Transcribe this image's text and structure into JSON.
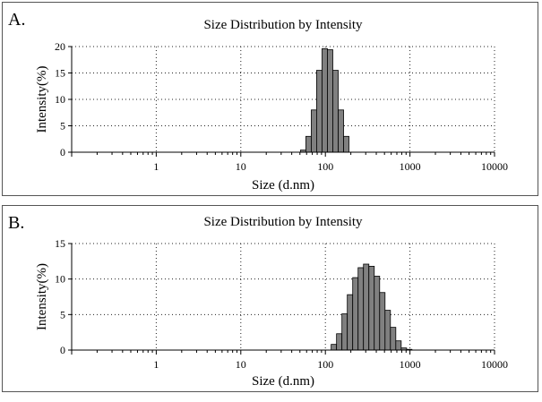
{
  "chart_data": [
    {
      "type": "bar",
      "panel_label": "A.",
      "title": "Size Distribution by Intensity",
      "xlabel": "Size (d.nm)",
      "ylabel": "Intensity(%)",
      "x_scale": "log",
      "xlim": [
        0.1,
        10000
      ],
      "ylim": [
        0,
        20
      ],
      "y_ticks": [
        0,
        5,
        10,
        15,
        20
      ],
      "x_tick_labels": [
        "1",
        "10",
        "100",
        "1000",
        "10000"
      ],
      "grid": true,
      "bin_edges": [
        50.7,
        58.8,
        68.1,
        78.8,
        91.3,
        105.7,
        122.4,
        141.8,
        164.2,
        190.1
      ],
      "values": [
        0.4,
        3.0,
        8.0,
        15.5,
        19.6,
        19.4,
        15.5,
        8.0,
        3.0,
        0.6
      ]
    },
    {
      "type": "bar",
      "panel_label": "B.",
      "title": "Size Distribution by Intensity",
      "xlabel": "Size (d.nm)",
      "ylabel": "Intensity(%)",
      "x_scale": "log",
      "xlim": [
        0.1,
        10000
      ],
      "ylim": [
        0,
        15
      ],
      "y_ticks": [
        0,
        5,
        10,
        15
      ],
      "x_tick_labels": [
        "1",
        "10",
        "100",
        "1000",
        "10000"
      ],
      "grid": true,
      "bin_edges": [
        117.0,
        135.5,
        156.9,
        181.7,
        210.4,
        243.7,
        282.1,
        326.7,
        378.4,
        438.2,
        507.4,
        587.6,
        680.4,
        788.0,
        912.5,
        1056.8
      ],
      "values": [
        0.8,
        2.3,
        5.1,
        7.8,
        10.2,
        11.6,
        12.1,
        11.8,
        10.4,
        8.1,
        5.6,
        3.2,
        1.3,
        0.3,
        0.1
      ]
    }
  ]
}
